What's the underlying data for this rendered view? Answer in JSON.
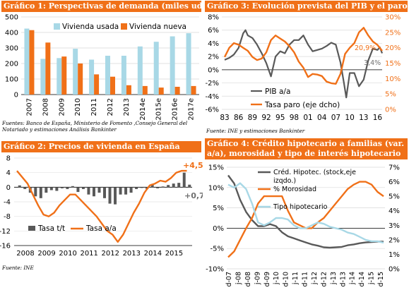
{
  "colors": {
    "orange": "#f07018",
    "lightblue": "#a8d8e6",
    "darkgray": "#595959",
    "gray": "#707070"
  },
  "panel1": {
    "title": "Gráfico 1: Perspectivas de demanda (miles uds.)",
    "source": "Fuentes: Banco de España, Ministerio de Fomento ,Consejo General del Notariado y estimaciones Análisis Bankinter"
  },
  "panel2": {
    "title": "Gráfico 2: Precios de vivienda en España",
    "source": "Fuente: INE",
    "annotations": [
      "+4,5",
      "+0,7"
    ]
  },
  "panel3": {
    "title": "Gráfico 3: Evolución prevista del PIB y el paro",
    "source": "Fuente: INE y estimaciones Bankinter",
    "annotations": [
      "20,9%",
      "3,4%"
    ]
  },
  "panel4": {
    "title": "Gráfico 4: Crédito hipotecario a familias (var. a/a), morosidad y tipo de interés hipotecario"
  },
  "chart_data": [
    {
      "type": "bar",
      "categories": [
        "2007",
        "2008",
        "2009",
        "2010",
        "2011",
        "2012",
        "2013",
        "2014e",
        "2015e",
        "2016e",
        "2017e"
      ],
      "series": [
        {
          "name": "Vivienda usada",
          "color": "#a8d8e6",
          "values": [
            425,
            230,
            235,
            295,
            225,
            250,
            250,
            310,
            340,
            375,
            395
          ]
        },
        {
          "name": "Vivienda nueva",
          "color": "#f07018",
          "values": [
            415,
            335,
            245,
            200,
            130,
            115,
            60,
            55,
            45,
            50,
            55
          ]
        }
      ],
      "ylim": [
        0,
        500
      ],
      "yticks": [
        0,
        100,
        200,
        300,
        400,
        500
      ],
      "legend": "top-right"
    },
    {
      "type": "bar+line",
      "x_labels": [
        "2008",
        "2009",
        "2010",
        "2011",
        "2012",
        "2013",
        "2014",
        "2015"
      ],
      "x_start": 2008,
      "x_end": 2016.25,
      "bar_series": {
        "name": "Tasa t/t",
        "values": [
          0.5,
          -0.5,
          -1.5,
          -2.5,
          -3.0,
          -1.5,
          -0.8,
          -1.0,
          -0.3,
          -0.5,
          0.3,
          -1.3,
          -0.5,
          -2.0,
          -2.5,
          -1.5,
          -3.0,
          -4.5,
          -4.7,
          -2.0,
          -2.0,
          -1.5,
          -0.5,
          -0.2,
          -0.5,
          0.9,
          -0.3,
          0.2,
          0.6,
          1.0,
          1.2,
          4.0,
          0.7
        ]
      },
      "line_series": {
        "name": "Tasa a/a",
        "points": [
          [
            2008.0,
            4.5
          ],
          [
            2008.5,
            1.0
          ],
          [
            2008.75,
            -2.0
          ],
          [
            2009.0,
            -5.0
          ],
          [
            2009.25,
            -7.5
          ],
          [
            2009.5,
            -8.0
          ],
          [
            2009.75,
            -7.0
          ],
          [
            2010.0,
            -5.0
          ],
          [
            2010.25,
            -3.5
          ],
          [
            2010.5,
            -2.0
          ],
          [
            2010.75,
            -2.0
          ],
          [
            2011.0,
            -3.5
          ],
          [
            2011.25,
            -5.0
          ],
          [
            2011.5,
            -6.5
          ],
          [
            2011.75,
            -8.0
          ],
          [
            2012.0,
            -10.0
          ],
          [
            2012.25,
            -12.0
          ],
          [
            2012.5,
            -13.0
          ],
          [
            2012.75,
            -15.0
          ],
          [
            2013.0,
            -13.0
          ],
          [
            2013.25,
            -10.0
          ],
          [
            2013.5,
            -7.0
          ],
          [
            2013.75,
            -4.5
          ],
          [
            2014.0,
            -1.5
          ],
          [
            2014.25,
            0.5
          ],
          [
            2014.5,
            1.0
          ],
          [
            2014.75,
            1.8
          ],
          [
            2015.0,
            1.5
          ],
          [
            2015.25,
            2.5
          ],
          [
            2015.5,
            4.0
          ],
          [
            2015.75,
            4.5
          ],
          [
            2016.0,
            4.5
          ]
        ]
      },
      "ylim": [
        -16,
        8
      ],
      "yticks": [
        -16,
        -12,
        -8,
        -4,
        0,
        4,
        8
      ],
      "legend": "bottom-left"
    },
    {
      "type": "line",
      "x_labels": [
        "83",
        "86",
        "89",
        "92",
        "95",
        "98",
        "01",
        "04",
        "07",
        "10",
        "13",
        "16"
      ],
      "x_start": 1983,
      "x_end": 2017,
      "series": [
        {
          "name": "PIB a/a",
          "axis": "left",
          "color": "#595959",
          "points": [
            [
              1983,
              1.5
            ],
            [
              1984,
              1.8
            ],
            [
              1985,
              2.3
            ],
            [
              1986,
              3.3
            ],
            [
              1987,
              5.5
            ],
            [
              1987.5,
              6.0
            ],
            [
              1988,
              5.2
            ],
            [
              1989,
              4.8
            ],
            [
              1990,
              3.8
            ],
            [
              1991,
              2.5
            ],
            [
              1992,
              1.0
            ],
            [
              1993,
              -1.0
            ],
            [
              1994,
              2.0
            ],
            [
              1995,
              2.8
            ],
            [
              1996,
              2.5
            ],
            [
              1997,
              3.8
            ],
            [
              1998,
              4.5
            ],
            [
              1999,
              4.5
            ],
            [
              2000,
              5.2
            ],
            [
              2001,
              3.8
            ],
            [
              2002,
              2.8
            ],
            [
              2003,
              3.0
            ],
            [
              2004,
              3.2
            ],
            [
              2005,
              3.6
            ],
            [
              2006,
              4.1
            ],
            [
              2007,
              3.8
            ],
            [
              2008,
              1.1
            ],
            [
              2008.75,
              -2.0
            ],
            [
              2009.25,
              -4.2
            ],
            [
              2010,
              -0.5
            ],
            [
              2011,
              -0.5
            ],
            [
              2012,
              -2.5
            ],
            [
              2013,
              -1.5
            ],
            [
              2014,
              1.4
            ],
            [
              2015,
              3.2
            ],
            [
              2016,
              3.0
            ],
            [
              2016.5,
              3.4
            ],
            [
              2017,
              2.5
            ]
          ]
        },
        {
          "name": "Tasa paro (eje dcho)",
          "axis": "right",
          "color": "#f07018",
          "points": [
            [
              1983,
              17.0
            ],
            [
              1984,
              20.0
            ],
            [
              1985,
              21.5
            ],
            [
              1986,
              21.0
            ],
            [
              1987,
              20.0
            ],
            [
              1988,
              19.0
            ],
            [
              1989,
              17.0
            ],
            [
              1990,
              16.0
            ],
            [
              1991,
              16.5
            ],
            [
              1992,
              18.5
            ],
            [
              1993,
              22.5
            ],
            [
              1994,
              24.0
            ],
            [
              1995,
              23.0
            ],
            [
              1996,
              22.0
            ],
            [
              1997,
              20.5
            ],
            [
              1998,
              18.5
            ],
            [
              1999,
              15.5
            ],
            [
              2000,
              13.5
            ],
            [
              2001,
              10.5
            ],
            [
              2002,
              11.5
            ],
            [
              2003,
              11.3
            ],
            [
              2004,
              10.8
            ],
            [
              2005,
              9.0
            ],
            [
              2006,
              8.5
            ],
            [
              2007,
              8.3
            ],
            [
              2008,
              11.5
            ],
            [
              2009,
              18.0
            ],
            [
              2010,
              20.0
            ],
            [
              2011,
              21.5
            ],
            [
              2012,
              25.0
            ],
            [
              2013,
              26.5
            ],
            [
              2014,
              24.0
            ],
            [
              2015,
              22.0
            ],
            [
              2016,
              20.9
            ],
            [
              2017,
              19.0
            ]
          ]
        }
      ],
      "ylim_left": [
        -6,
        8
      ],
      "yticks_left": [
        -6,
        -4,
        -2,
        0,
        2,
        4,
        6,
        8
      ],
      "ylim_right": [
        0,
        30
      ],
      "yticks_right": [
        0,
        5,
        10,
        15,
        20,
        25,
        30
      ],
      "legend": "bottom-center"
    },
    {
      "type": "line",
      "x_labels": [
        "d-07",
        "j-08",
        "d-08",
        "j-09",
        "d-09",
        "j-10",
        "d-10",
        "j-11",
        "d-11",
        "j-12",
        "d-12",
        "j-13",
        "d-13",
        "j-14",
        "d-14",
        "j-15",
        "d-15"
      ],
      "series": [
        {
          "name": "Créd. Hipotec. (stock,eje izqdo.)",
          "axis": "left",
          "color": "#595959",
          "values": [
            13,
            11,
            7,
            4,
            2,
            0.5,
            0.5,
            1,
            0.5,
            -1,
            -2,
            -2.5,
            -3,
            -3.5,
            -4,
            -4.3,
            -4.7,
            -4.8,
            -4.7,
            -4.6,
            -4.2,
            -4.0,
            -3.7,
            -3.5,
            -3.4,
            -3.3,
            -3.3
          ]
        },
        {
          "name": "% Morosidad",
          "axis": "right",
          "color": "#f07018",
          "values": [
            0.8,
            1.2,
            2.0,
            2.8,
            3.5,
            4.5,
            5.0,
            5.0,
            5.0,
            5.0,
            4.0,
            3.2,
            3.0,
            2.8,
            2.8,
            3.2,
            3.5,
            4.0,
            4.5,
            5.0,
            5.5,
            5.8,
            6.0,
            6.0,
            5.8,
            5.3,
            5.0
          ]
        },
        {
          "name": "Tipo hipotecario",
          "axis": "right",
          "color": "#a8d8e6",
          "values": [
            5.8,
            5.6,
            5.9,
            5.5,
            4.5,
            3.2,
            3.0,
            3.2,
            3.5,
            3.5,
            3.4,
            3.0,
            2.8,
            2.8,
            3.0,
            3.2,
            3.1,
            2.9,
            2.8,
            2.7,
            2.5,
            2.4,
            2.2,
            2.0,
            1.9,
            1.9,
            1.8
          ]
        }
      ],
      "ylim_left": [
        -10,
        15
      ],
      "yticks_left": [
        -10,
        -5,
        0,
        5,
        10,
        15
      ],
      "ylim_right": [
        0,
        7
      ],
      "yticks_right": [
        0,
        1,
        2,
        3,
        4,
        5,
        6,
        7
      ],
      "legend": "top-center"
    }
  ]
}
